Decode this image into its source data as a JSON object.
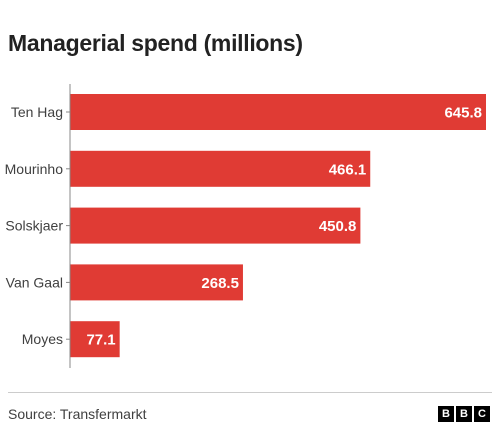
{
  "title": "Managerial spend (millions)",
  "source": "Source: Transfermarkt",
  "logo": [
    "B",
    "B",
    "C"
  ],
  "colors": {
    "bar": "#e03b34",
    "axis": "#888888",
    "label": "#404040"
  },
  "chart_data": {
    "type": "bar",
    "orientation": "horizontal",
    "title": "Managerial spend (millions)",
    "categories": [
      "Ten Hag",
      "Mourinho",
      "Solskjaer",
      "Van Gaal",
      "Moyes"
    ],
    "values": [
      645.8,
      466.1,
      450.8,
      268.5,
      77.1
    ],
    "data_labels": [
      "645.8",
      "466.1",
      "450.8",
      "268.5",
      "77.1"
    ],
    "xlim": [
      0,
      645.8
    ],
    "grid": false,
    "legend": "none"
  }
}
